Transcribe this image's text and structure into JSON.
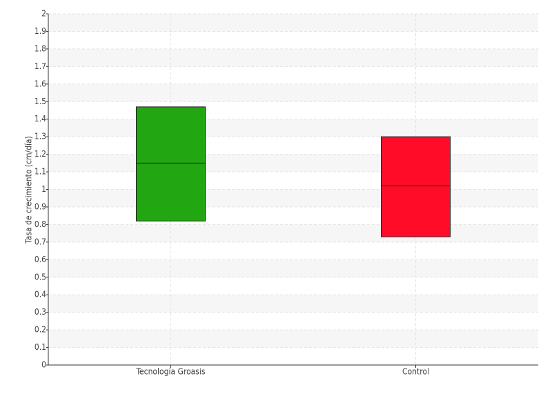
{
  "chart_data": {
    "type": "box",
    "y_label": "Tasa de crecimiento (cm/día)",
    "categories": [
      "Tecnología Groasis",
      "Control"
    ],
    "boxes": [
      {
        "low": 0.82,
        "median": 1.15,
        "high": 1.47,
        "color": "#22a612"
      },
      {
        "low": 0.73,
        "median": 1.02,
        "high": 1.3,
        "color": "#ff0d28"
      }
    ],
    "ylim": [
      0,
      2
    ],
    "yticks": [
      0,
      0.1,
      0.2,
      0.3,
      0.4,
      0.5,
      0.6,
      0.7,
      0.8,
      0.9,
      1,
      1.1,
      1.2,
      1.3,
      1.4,
      1.5,
      1.6,
      1.7,
      1.8,
      1.9,
      2
    ],
    "grid": true
  }
}
